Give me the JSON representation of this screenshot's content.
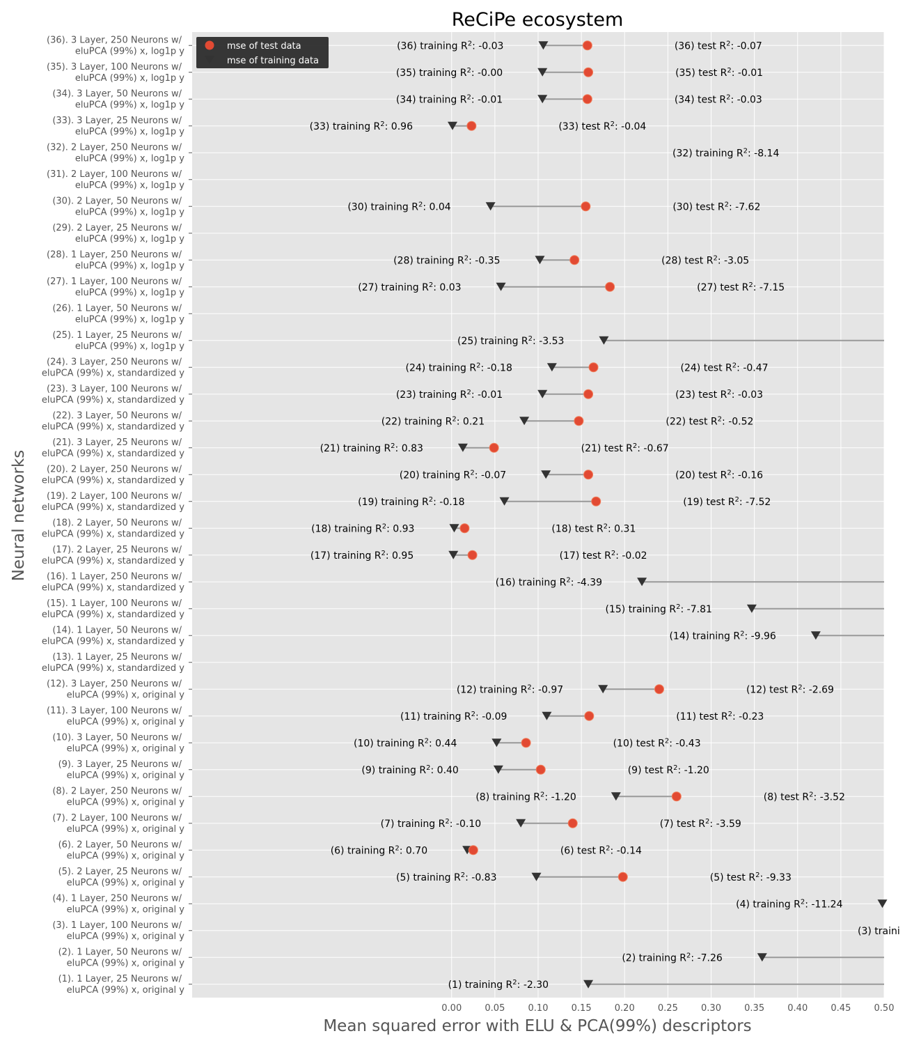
{
  "chart_data": {
    "type": "dumbbell",
    "title": "ReCiPe ecosystem",
    "xlabel": "Mean squared error with ELU & PCA(99%) descriptors",
    "ylabel": "Neural networks",
    "xlim": [
      -0.3,
      0.5
    ],
    "xticks": [
      "0.00",
      "0.05",
      "0.10",
      "0.15",
      "0.20",
      "0.25",
      "0.30",
      "0.35",
      "0.40",
      "0.45",
      "0.50"
    ],
    "grid": true,
    "legend": {
      "position": "top-left",
      "entries": [
        {
          "label": "mse of test data",
          "marker": "circle",
          "color": "#e24a33"
        },
        {
          "label": "mse of training data",
          "marker": "triangle-down",
          "color": "#333333"
        }
      ]
    },
    "colors": {
      "test": "#e24a33",
      "train": "#333333",
      "background": "#e5e5e5",
      "connector": "#999999"
    },
    "models": [
      {
        "id": 1,
        "line1": "(1).   1 Layer, 25 Neurons w/",
        "line2": "eluPCA (99%) x, original y",
        "train": 0.158,
        "test": null,
        "train_label": "(1)   training R²: -2.30",
        "test_label": ""
      },
      {
        "id": 2,
        "line1": "(2).   1 Layer, 50 Neurons w/",
        "line2": "eluPCA (99%) x, original y",
        "train": 0.359,
        "test": null,
        "train_label": "(2)   training R²: -7.26",
        "test_label": ""
      },
      {
        "id": 3,
        "line1": "(3).   1 Layer, 100 Neurons w/",
        "line2": "eluPCA (99%) x, original y",
        "train": null,
        "test": null,
        "train_label": "(3)   traini",
        "test_label": ""
      },
      {
        "id": 4,
        "line1": "(4).   1 Layer, 250 Neurons w/",
        "line2": "eluPCA (99%) x, original y",
        "train": 0.498,
        "test": null,
        "train_label": "(4)   training R²: -11.24",
        "test_label": ""
      },
      {
        "id": 5,
        "line1": "(5).   2 Layer, 25 Neurons w/",
        "line2": "eluPCA (99%) x, original y",
        "train": 0.098,
        "test": 0.198,
        "train_label": "(5)   training R²: -0.83",
        "test_label": "(5)   test R²: -9.33"
      },
      {
        "id": 6,
        "line1": "(6).   2 Layer, 50 Neurons w/",
        "line2": "eluPCA (99%) x, original y",
        "train": 0.018,
        "test": 0.025,
        "train_label": "(6)   training R²: 0.70",
        "test_label": "(6)   test R²: -0.14"
      },
      {
        "id": 7,
        "line1": "(7).   2 Layer, 100 Neurons w/",
        "line2": "eluPCA (99%) x, original y",
        "train": 0.08,
        "test": 0.14,
        "train_label": "(7)   training R²: -0.10",
        "test_label": "(7)   test R²: -3.59"
      },
      {
        "id": 8,
        "line1": "(8).   2 Layer, 250 Neurons w/",
        "line2": "eluPCA (99%) x, original y",
        "train": 0.19,
        "test": 0.26,
        "train_label": "(8)   training R²: -1.20",
        "test_label": "(8)   test R²: -3.52"
      },
      {
        "id": 9,
        "line1": "(9).   3 Layer, 25 Neurons w/",
        "line2": "eluPCA (99%) x, original y",
        "train": 0.054,
        "test": 0.103,
        "train_label": "(9)   training R²: 0.40",
        "test_label": "(9)   test R²: -1.20"
      },
      {
        "id": 10,
        "line1": "(10).   3 Layer, 50 Neurons w/",
        "line2": "eluPCA (99%) x, original y",
        "train": 0.052,
        "test": 0.086,
        "train_label": "(10)   training R²: 0.44",
        "test_label": "(10)   test R²: -0.43"
      },
      {
        "id": 11,
        "line1": "(11).   3 Layer, 100 Neurons w/",
        "line2": "eluPCA (99%) x, original y",
        "train": 0.11,
        "test": 0.159,
        "train_label": "(11)   training R²: -0.09",
        "test_label": "(11)   test R²: -0.23"
      },
      {
        "id": 12,
        "line1": "(12).   3 Layer, 250 Neurons w/",
        "line2": "eluPCA (99%) x, original y",
        "train": 0.175,
        "test": 0.24,
        "train_label": "(12)   training R²: -0.97",
        "test_label": "(12)   test R²: -2.69"
      },
      {
        "id": 13,
        "line1": "(13).   1 Layer, 25 Neurons w/",
        "line2": "eluPCA (99%) x, standardized y",
        "train": null,
        "test": null,
        "train_label": "",
        "test_label": ""
      },
      {
        "id": 14,
        "line1": "(14).   1 Layer, 50 Neurons w/",
        "line2": "eluPCA (99%) x, standardized y",
        "train": 0.421,
        "test": null,
        "train_label": "(14)   training R²: -9.96",
        "test_label": ""
      },
      {
        "id": 15,
        "line1": "(15).   1 Layer, 100 Neurons w/",
        "line2": "eluPCA (99%) x, standardized y",
        "train": 0.347,
        "test": null,
        "train_label": "(15)   training R²: -7.81",
        "test_label": ""
      },
      {
        "id": 16,
        "line1": "(16).   1 Layer, 250 Neurons w/",
        "line2": "eluPCA (99%) x, standardized y",
        "train": 0.22,
        "test": null,
        "train_label": "(16)   training R²: -4.39",
        "test_label": ""
      },
      {
        "id": 17,
        "line1": "(17).   2 Layer, 25 Neurons w/",
        "line2": "eluPCA (99%) x, standardized y",
        "train": 0.002,
        "test": 0.024,
        "train_label": "(17)   training R²: 0.95",
        "test_label": "(17)   test R²: -0.02"
      },
      {
        "id": 18,
        "line1": "(18).   2 Layer, 50 Neurons w/",
        "line2": "eluPCA (99%) x, standardized y",
        "train": 0.003,
        "test": 0.015,
        "train_label": "(18)   training R²: 0.93",
        "test_label": "(18)   test R²: 0.31"
      },
      {
        "id": 19,
        "line1": "(19).   2 Layer, 100 Neurons w/",
        "line2": "eluPCA (99%) x, standardized y",
        "train": 0.061,
        "test": 0.167,
        "train_label": "(19)   training R²: -0.18",
        "test_label": "(19)   test R²: -7.52"
      },
      {
        "id": 20,
        "line1": "(20).   2 Layer, 250 Neurons w/",
        "line2": "eluPCA (99%) x, standardized y",
        "train": 0.109,
        "test": 0.158,
        "train_label": "(20)   training R²: -0.07",
        "test_label": "(20)   test R²: -0.16"
      },
      {
        "id": 21,
        "line1": "(21).   3 Layer, 25 Neurons w/",
        "line2": "eluPCA (99%) x, standardized y",
        "train": 0.013,
        "test": 0.049,
        "train_label": "(21)   training R²: 0.83",
        "test_label": "(21)   test R²: -0.67"
      },
      {
        "id": 22,
        "line1": "(22).   3 Layer, 50 Neurons w/",
        "line2": "eluPCA (99%) x, standardized y",
        "train": 0.084,
        "test": 0.147,
        "train_label": "(22)   training R²: 0.21",
        "test_label": "(22)   test R²: -0.52"
      },
      {
        "id": 23,
        "line1": "(23).   3 Layer, 100 Neurons w/",
        "line2": "eluPCA (99%) x, standardized y",
        "train": 0.105,
        "test": 0.158,
        "train_label": "(23)   training R²: -0.01",
        "test_label": "(23)   test R²: -0.03"
      },
      {
        "id": 24,
        "line1": "(24).   3 Layer, 250 Neurons w/",
        "line2": "eluPCA (99%) x, standardized y",
        "train": 0.116,
        "test": 0.164,
        "train_label": "(24)   training R²: -0.18",
        "test_label": "(24)   test R²: -0.47"
      },
      {
        "id": 25,
        "line1": "(25).   1 Layer, 25 Neurons w/",
        "line2": "eluPCA (99%) x, log1p y",
        "train": 0.176,
        "test": null,
        "train_label": "(25)   training R²: -3.53",
        "test_label": ""
      },
      {
        "id": 26,
        "line1": "(26).   1 Layer, 50 Neurons w/",
        "line2": "eluPCA (99%) x, log1p y",
        "train": null,
        "test": null,
        "train_label": "",
        "test_label": ""
      },
      {
        "id": 27,
        "line1": "(27).   1 Layer, 100 Neurons w/",
        "line2": "eluPCA (99%) x, log1p y",
        "train": 0.057,
        "test": 0.183,
        "train_label": "(27)   training R²: 0.03",
        "test_label": "(27)   test R²: -7.15"
      },
      {
        "id": 28,
        "line1": "(28).   1 Layer, 250 Neurons w/",
        "line2": "eluPCA (99%) x, log1p y",
        "train": 0.102,
        "test": 0.142,
        "train_label": "(28)   training R²: -0.35",
        "test_label": "(28)   test R²: -3.05"
      },
      {
        "id": 29,
        "line1": "(29).   2 Layer, 25 Neurons w/",
        "line2": "eluPCA (99%) x, log1p y",
        "train": null,
        "test": null,
        "train_label": "",
        "test_label": ""
      },
      {
        "id": 30,
        "line1": "(30).   2 Layer, 50 Neurons w/",
        "line2": "eluPCA (99%) x, log1p y",
        "train": 0.045,
        "test": 0.155,
        "train_label": "(30)   training R²: 0.04",
        "test_label": "(30)   test R²: -7.62"
      },
      {
        "id": 31,
        "line1": "(31).   2 Layer, 100 Neurons w/",
        "line2": "eluPCA (99%) x, log1p y",
        "train": null,
        "test": null,
        "train_label": "",
        "test_label": ""
      },
      {
        "id": 32,
        "line1": "(32).   2 Layer, 250 Neurons w/",
        "line2": "eluPCA (99%) x, log1p y",
        "train": null,
        "test": null,
        "train_label": "(32)   training R²: -8.14",
        "test_label": ""
      },
      {
        "id": 33,
        "line1": "(33).   3 Layer, 25 Neurons w/",
        "line2": "eluPCA (99%) x, log1p y",
        "train": 0.001,
        "test": 0.023,
        "train_label": "(33)   training R²: 0.96",
        "test_label": "(33)   test R²: -0.04"
      },
      {
        "id": 34,
        "line1": "(34).   3 Layer, 50 Neurons w/",
        "line2": "eluPCA (99%) x, log1p y",
        "train": 0.105,
        "test": 0.157,
        "train_label": "(34)   training R²: -0.01",
        "test_label": "(34)   test R²: -0.03"
      },
      {
        "id": 35,
        "line1": "(35).   3 Layer, 100 Neurons w/",
        "line2": "eluPCA (99%) x, log1p y",
        "train": 0.105,
        "test": 0.158,
        "train_label": "(35)   training R²: -0.00",
        "test_label": "(35)   test R²: -0.01"
      },
      {
        "id": 36,
        "line1": "(36).   3 Layer, 250 Neurons w/",
        "line2": "eluPCA (99%) x, log1p y",
        "train": 0.106,
        "test": 0.157,
        "train_label": "(36)   training R²: -0.03",
        "test_label": "(36)   test R²: -0.07"
      }
    ]
  }
}
